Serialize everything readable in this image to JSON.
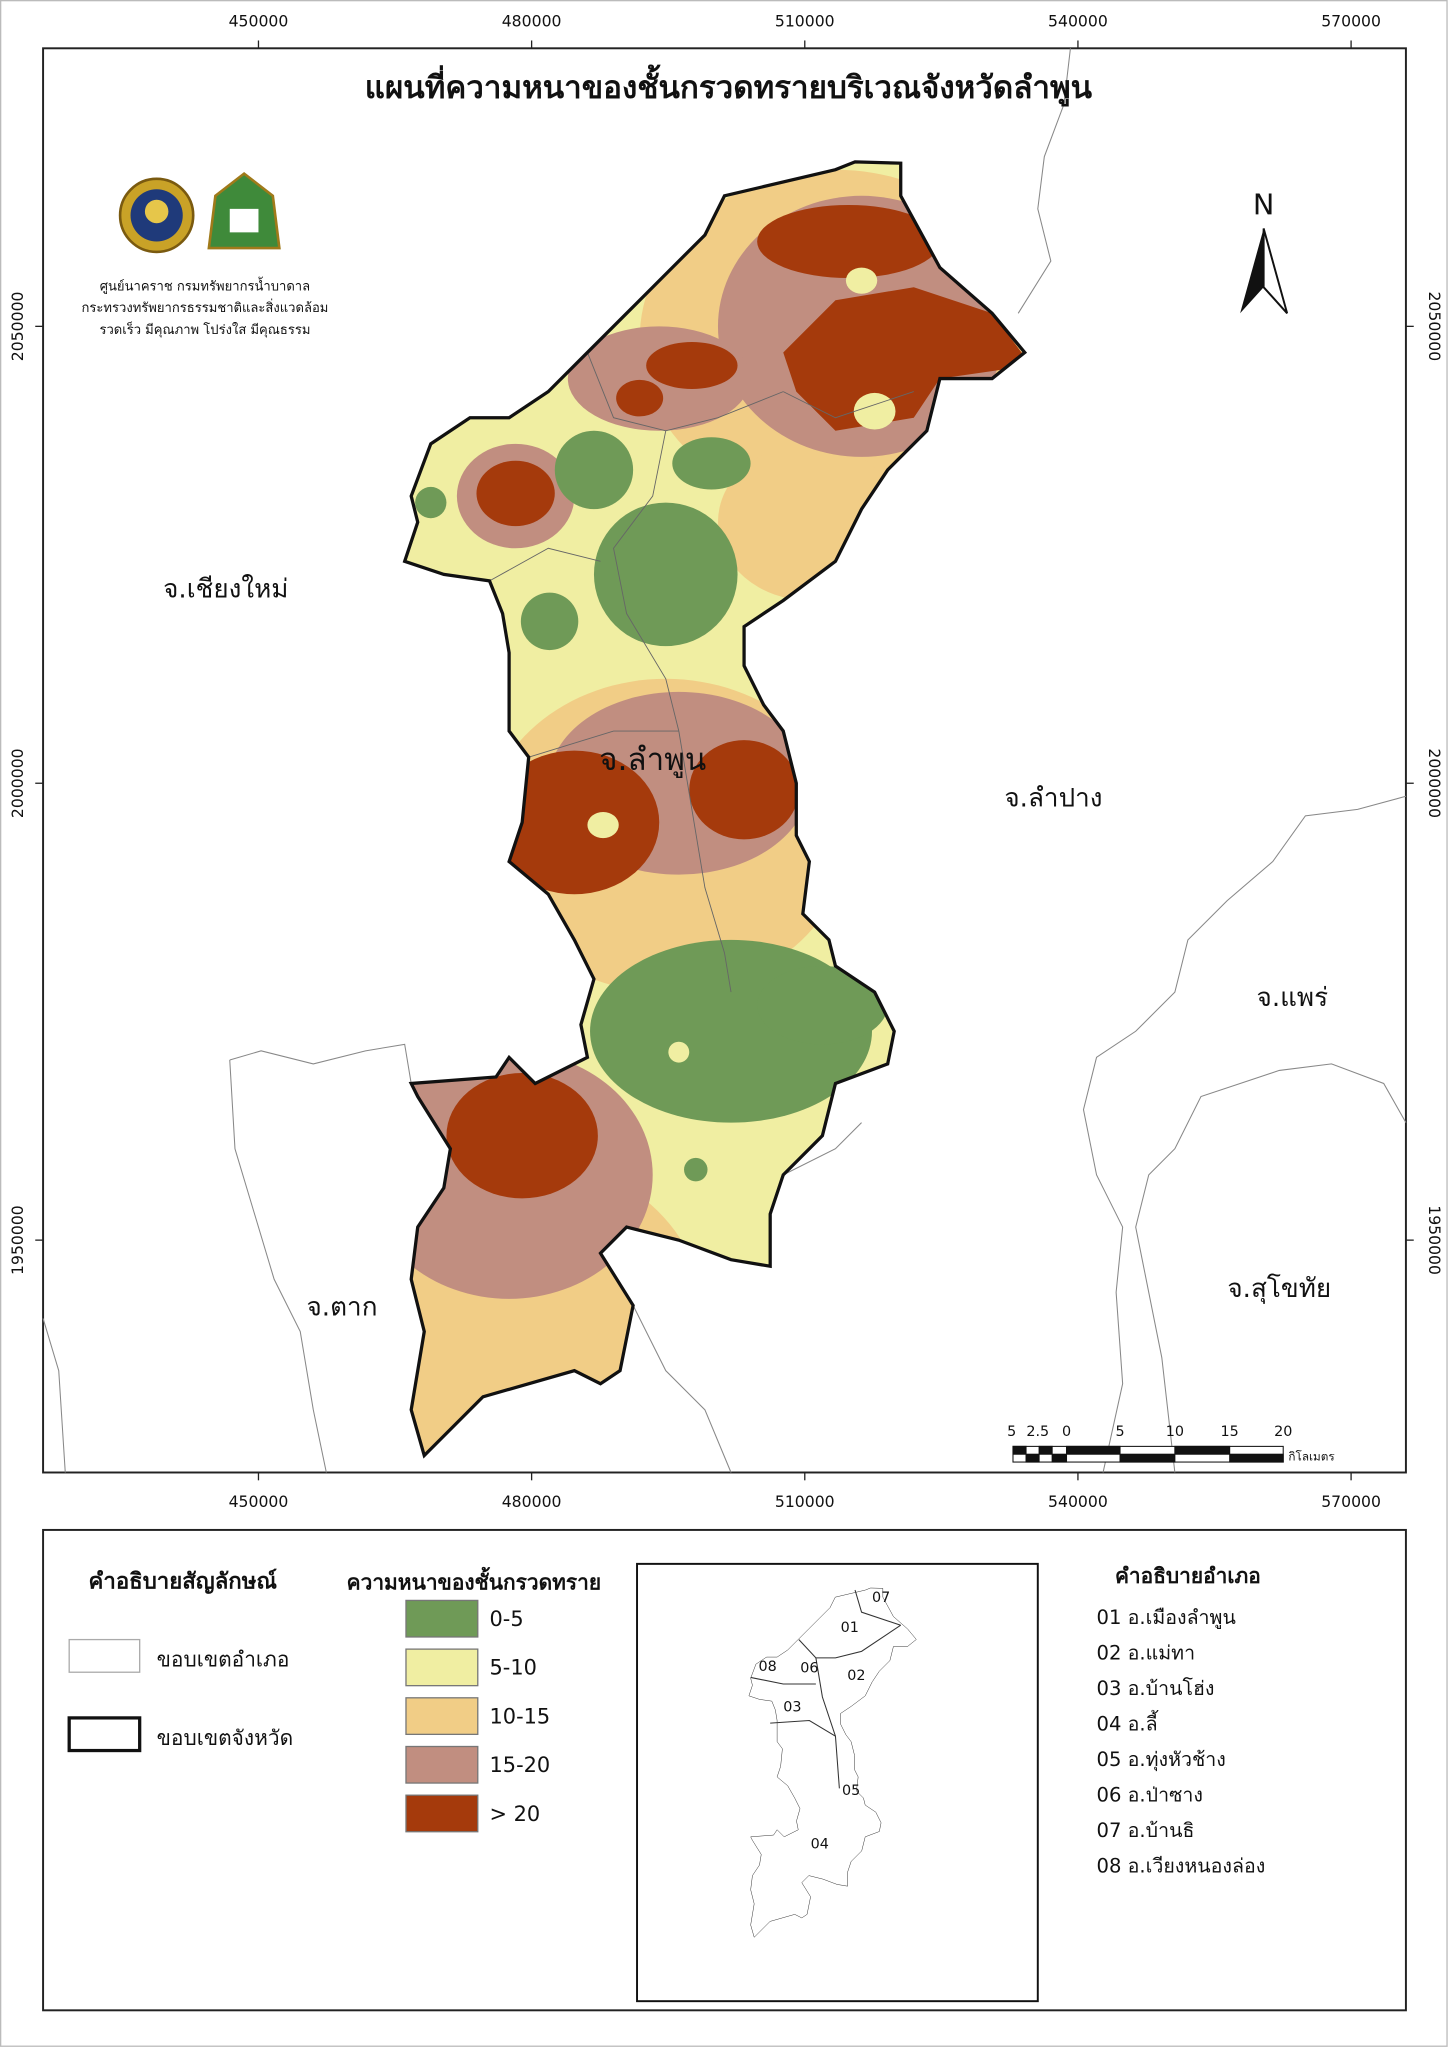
{
  "header": {
    "title": "แผนที่ความหนาของชั้นกรวดทรายบริเวณจังหวัดลำพูน",
    "organization": [
      "ศูนย์นาคราช กรมทรัพยากรน้ำบาดาล",
      "กระทรวงทรัพยากรธรรมชาติและสิ่งแวดล้อม",
      "รวดเร็ว มีคุณภาพ โปร่งใส มีคุณธรรม"
    ]
  },
  "map": {
    "x_ticks": [
      450000,
      480000,
      510000,
      540000,
      570000
    ],
    "y_ticks": [
      2050000,
      2000000,
      1950000
    ],
    "north": "N",
    "province_labels": [
      "จ.เชียงใหม่",
      "จ.ลำพูน",
      "จ.ลำปาง",
      "จ.แพร่",
      "จ.ตาก",
      "จ.สุโขทัย"
    ],
    "scale_bar": {
      "labels": [
        5,
        2.5,
        0,
        5,
        10,
        15,
        20
      ],
      "unit": "กิโลเมตร"
    }
  },
  "legend": {
    "title": "คำอธิบายสัญลักษณ์",
    "boundaries": [
      "ขอบเขตอำเภอ",
      "ขอบเขตจังหวัด"
    ],
    "thickness_title": "ความหนาของชั้นกรวดทราย",
    "classes": [
      {
        "label": "0-5",
        "color": "#6f9a57"
      },
      {
        "label": "5-10",
        "color": "#f0eea2"
      },
      {
        "label": "10-15",
        "color": "#f1cd86"
      },
      {
        "label": "15-20",
        "color": "#c18e80"
      },
      {
        "label": "> 20",
        "color": "#a53a0c"
      }
    ]
  },
  "inset": {
    "district_codes": [
      "01",
      "02",
      "03",
      "04",
      "05",
      "06",
      "07",
      "08"
    ]
  },
  "districts": {
    "title": "คำอธิบายอำเภอ",
    "items": [
      "01 อ.เมืองลำพูน",
      "02 อ.แม่ทา",
      "03 อ.บ้านโฮ่ง",
      "04 อ.ลี้",
      "05 อ.ทุ่งหัวช้าง",
      "06 อ.ป่าซาง",
      "07 อ.บ้านธิ",
      "08 อ.เวียงหนองล่อง"
    ]
  }
}
